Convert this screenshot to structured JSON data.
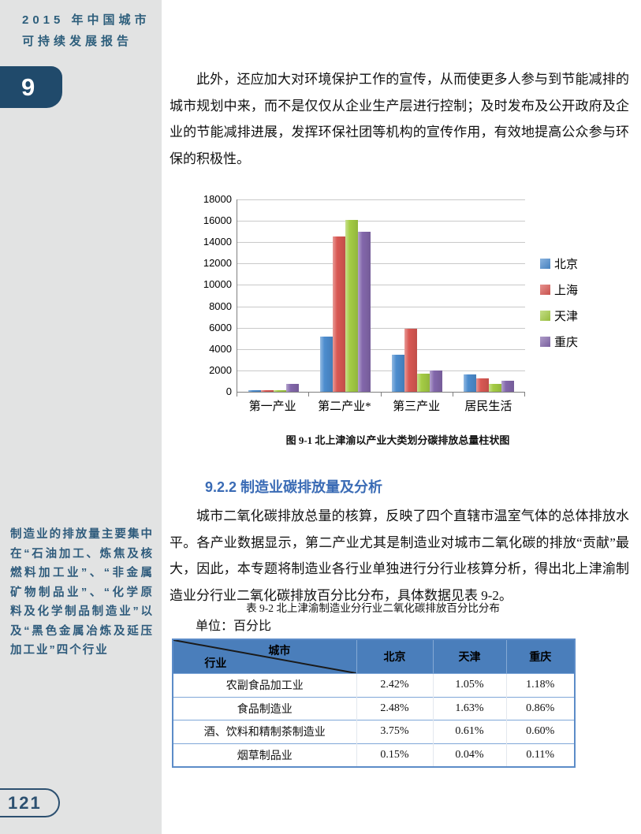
{
  "header": {
    "report_title_line1": "2015 年中国城市",
    "report_title_line2": "可持续发展报告",
    "chapter_number": "9"
  },
  "footer": {
    "page_number": "121"
  },
  "sidebar_note": "制造业的排放量主要集中在“石油加工、炼焦及核燃料加工业”、“非金属矿物制品业”、“化学原料及化学制品制造业”以及“黑色金属冶炼及延压加工业”四个行业",
  "paragraphs": {
    "p1": "此外，还应加大对环境保护工作的宣传，从而使更多人参与到节能减排的城市规划中来，而不是仅仅从企业生产层进行控制；及时发布及公开政府及企业的节能减排进展，发挥环保社团等机构的宣传作用，有效地提高公众参与环保的积极性。",
    "p2": "城市二氧化碳排放总量的核算，反映了四个直辖市温室气体的总体排放水平。各产业数据显示，第二产业尤其是制造业对城市二氧化碳的排放“贡献”最大，因此，本专题将制造业各行业单独进行分行业核算分析，得出北上津渝制造业分行业二氧化碳排放百分比分布，具体数据见表 9-2。"
  },
  "section_heading": "9.2.2 制造业碳排放量及分析",
  "chart_data": {
    "type": "bar",
    "caption": "图 9-1 北上津渝以产业大类划分碳排放总量柱状图",
    "categories": [
      "第一产业",
      "第二产业*",
      "第三产业",
      "居民生活"
    ],
    "series": [
      {
        "name": "北京",
        "color": "#4c8cce",
        "values": [
          150,
          5200,
          3450,
          1600
        ]
      },
      {
        "name": "上海",
        "color": "#d95853",
        "values": [
          150,
          14500,
          5900,
          1250
        ]
      },
      {
        "name": "天津",
        "color": "#a4cc44",
        "values": [
          170,
          16100,
          1700,
          730
        ]
      },
      {
        "name": "重庆",
        "color": "#8367ab",
        "values": [
          750,
          15000,
          2000,
          1020
        ]
      }
    ],
    "ylim": [
      0,
      18000
    ],
    "ytick_step": 2000,
    "grid": true,
    "legend_position": "right"
  },
  "table9_2": {
    "caption": "表 9-2 北上津渝制造业分行业二氧化碳排放百分比分布",
    "unit_label": "单位：百分比",
    "corner_top": "城市",
    "corner_bottom": "行业",
    "columns": [
      "北京",
      "天津",
      "重庆"
    ],
    "rows": [
      {
        "industry": "农副食品加工业",
        "values": [
          "2.42%",
          "1.05%",
          "1.18%"
        ]
      },
      {
        "industry": "食品制造业",
        "values": [
          "2.48%",
          "1.63%",
          "0.86%"
        ]
      },
      {
        "industry": "酒、饮料和精制茶制造业",
        "values": [
          "3.75%",
          "0.61%",
          "0.60%"
        ]
      },
      {
        "industry": "烟草制品业",
        "values": [
          "0.15%",
          "0.04%",
          "0.11%"
        ]
      }
    ]
  },
  "colors": {
    "sidebar_background": "#e2e3e3",
    "chapter_badge": "#204a6b",
    "report_title_text": "#2e5f7c",
    "section_heading_blue": "#3a6bb5",
    "table_header_blue": "#4a7ebb",
    "page_pill_navy": "#2c5070"
  }
}
